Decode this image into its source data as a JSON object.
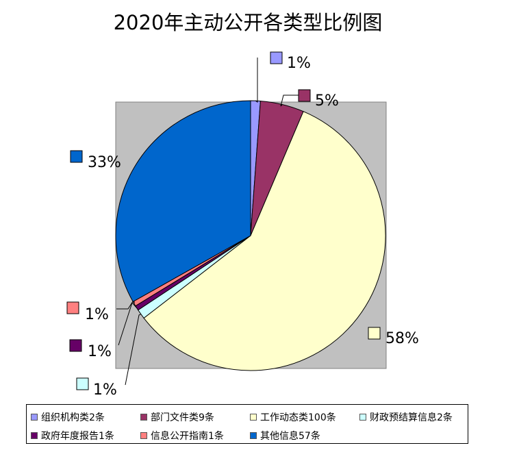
{
  "chart_data": {
    "type": "pie",
    "title": "2020年主动公开各类型比例图",
    "slices": [
      {
        "name": "组织机构类2条",
        "value": 2,
        "percent_label": "1%",
        "color": "#9999ff"
      },
      {
        "name": "部门文件类9条",
        "value": 9,
        "percent_label": "5%",
        "color": "#993366"
      },
      {
        "name": "工作动态类100条",
        "value": 100,
        "percent_label": "58%",
        "color": "#ffffcc"
      },
      {
        "name": "财政预结算信息2条",
        "value": 2,
        "percent_label": "1%",
        "color": "#ccffff"
      },
      {
        "name": "政府年度报告1条",
        "value": 1,
        "percent_label": "1%",
        "color": "#660066"
      },
      {
        "name": "信息公开指南1条",
        "value": 1,
        "percent_label": "1%",
        "color": "#ff8080"
      },
      {
        "name": "其他信息57条",
        "value": 57,
        "percent_label": "33%",
        "color": "#0066cc"
      }
    ],
    "plot_background": "#c0c0c0",
    "legend_position": "bottom"
  }
}
